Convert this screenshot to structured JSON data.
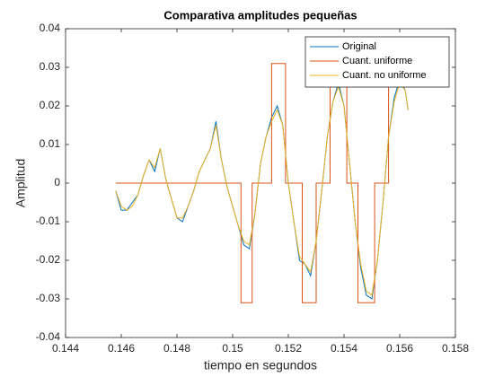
{
  "chart_data": {
    "type": "line",
    "title": "Comparativa amplitudes pequeñas",
    "x_label": "tiempo en segundos",
    "y_label": "Amplitud",
    "xlim": [
      0.144,
      0.158
    ],
    "xticks": [
      0.144,
      0.146,
      0.148,
      0.15,
      0.152,
      0.154,
      0.156,
      0.158
    ],
    "ylim": [
      -0.04,
      0.04
    ],
    "yticks": [
      -0.04,
      -0.03,
      -0.02,
      -0.01,
      0,
      0.01,
      0.02,
      0.03,
      0.04
    ],
    "legend": "top-right",
    "grid": false,
    "series": [
      {
        "name": "Original",
        "color": "#0072BD",
        "x": [
          0.1458,
          0.146,
          0.1462,
          0.1464,
          0.1466,
          0.1468,
          0.147,
          0.1472,
          0.1474,
          0.1476,
          0.1478,
          0.148,
          0.1482,
          0.1484,
          0.1486,
          0.1488,
          0.149,
          0.1492,
          0.1494,
          0.1496,
          0.1498,
          0.15,
          0.1502,
          0.1504,
          0.1506,
          0.1508,
          0.151,
          0.1512,
          0.1514,
          0.1516,
          0.1518,
          0.152,
          0.1522,
          0.1524,
          0.1526,
          0.1528,
          0.153,
          0.1532,
          0.1534,
          0.1536,
          0.1538,
          0.154,
          0.1542,
          0.1544,
          0.1546,
          0.1548,
          0.155,
          0.1552,
          0.1554,
          0.1556,
          0.1558,
          0.156,
          0.1562,
          0.1563
        ],
        "values": [
          -0.002,
          -0.007,
          -0.007,
          -0.005,
          -0.003,
          0.002,
          0.006,
          0.003,
          0.009,
          0.001,
          -0.004,
          -0.009,
          -0.01,
          -0.006,
          -0.002,
          0.003,
          0.006,
          0.009,
          0.016,
          0.006,
          -0.001,
          -0.006,
          -0.011,
          -0.016,
          -0.017,
          -0.008,
          0.005,
          0.012,
          0.017,
          0.02,
          0.015,
          0,
          -0.01,
          -0.02,
          -0.021,
          -0.024,
          -0.015,
          -0.002,
          0.012,
          0.021,
          0.026,
          0.02,
          0.005,
          -0.01,
          -0.022,
          -0.029,
          -0.03,
          -0.02,
          -0.005,
          0.012,
          0.022,
          0.027,
          0.024,
          0.019
        ]
      },
      {
        "name": "Cuant. uniforme",
        "color": "#D95319",
        "x": [
          0.1458,
          0.1503,
          0.1503,
          0.1507,
          0.1507,
          0.1514,
          0.1514,
          0.1519,
          0.1519,
          0.1525,
          0.1525,
          0.153,
          0.153,
          0.1535,
          0.1535,
          0.1541,
          0.1541,
          0.1545,
          0.1545,
          0.1551,
          0.1551,
          0.1556,
          0.1556,
          0.1562
        ],
        "values": [
          0,
          0,
          -0.031,
          -0.031,
          0,
          0,
          0.031,
          0.031,
          0,
          0,
          -0.031,
          -0.031,
          0,
          0,
          0.031,
          0.031,
          0,
          0,
          -0.031,
          -0.031,
          0,
          0,
          0.031,
          0.031
        ]
      },
      {
        "name": "Cuant. no uniforme",
        "color": "#EDB120",
        "x": [
          0.1458,
          0.146,
          0.1462,
          0.1464,
          0.1466,
          0.1468,
          0.147,
          0.1472,
          0.1474,
          0.1476,
          0.1478,
          0.148,
          0.1482,
          0.1484,
          0.1486,
          0.1488,
          0.149,
          0.1492,
          0.1494,
          0.1496,
          0.1498,
          0.15,
          0.1502,
          0.1504,
          0.1506,
          0.1508,
          0.151,
          0.1512,
          0.1514,
          0.1516,
          0.1518,
          0.152,
          0.1522,
          0.1524,
          0.1526,
          0.1528,
          0.153,
          0.1532,
          0.1534,
          0.1536,
          0.1538,
          0.154,
          0.1542,
          0.1544,
          0.1546,
          0.1548,
          0.155,
          0.1552,
          0.1554,
          0.1556,
          0.1558,
          0.156,
          0.1562,
          0.1563
        ],
        "values": [
          -0.002,
          -0.006,
          -0.007,
          -0.006,
          -0.003,
          0.002,
          0.006,
          0.004,
          0.009,
          0.001,
          -0.004,
          -0.009,
          -0.009,
          -0.006,
          -0.002,
          0.003,
          0.006,
          0.009,
          0.015,
          0.006,
          -0.001,
          -0.006,
          -0.011,
          -0.015,
          -0.016,
          -0.008,
          0.005,
          0.012,
          0.016,
          0.019,
          0.015,
          0,
          -0.01,
          -0.019,
          -0.021,
          -0.023,
          -0.015,
          -0.002,
          0.012,
          0.021,
          0.025,
          0.02,
          0.005,
          -0.01,
          -0.021,
          -0.028,
          -0.029,
          -0.02,
          -0.005,
          0.012,
          0.021,
          0.026,
          0.024,
          0.019
        ]
      }
    ]
  }
}
